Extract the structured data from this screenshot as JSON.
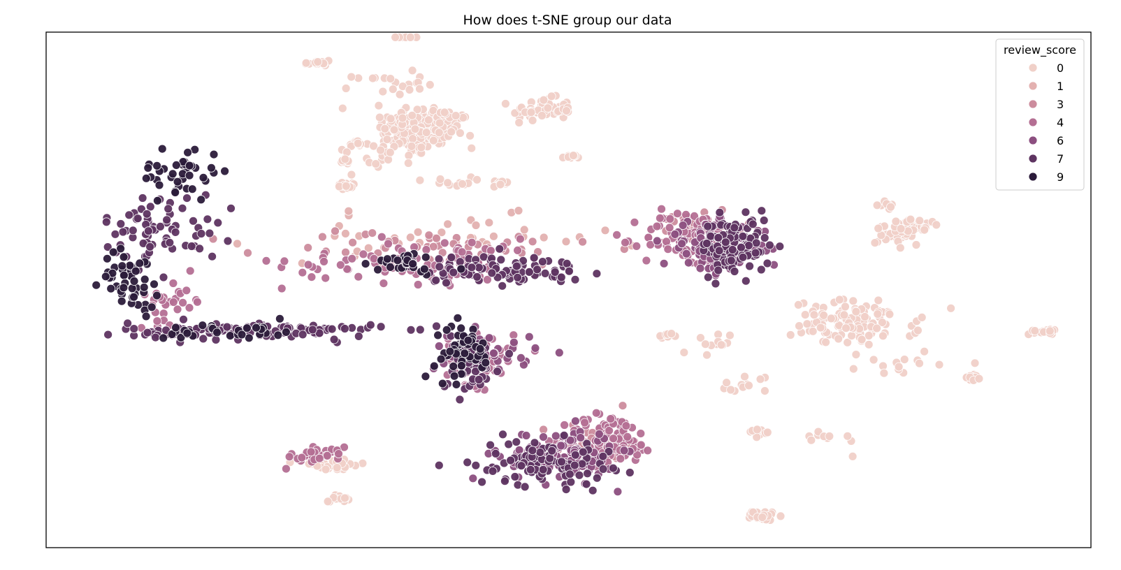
{
  "chart_data": {
    "type": "scatter",
    "title": "How does t-SNE group our data",
    "xlabel": "",
    "ylabel": "",
    "xticks": [],
    "yticks": [],
    "grid": false,
    "xlim": [
      0,
      100
    ],
    "ylim": [
      0,
      100
    ],
    "legend": {
      "title": "review_score",
      "placement": "top-right",
      "entries": [
        {
          "label": "0",
          "color": "#f0d0c8"
        },
        {
          "label": "1",
          "color": "#e3b1b0"
        },
        {
          "label": "3",
          "color": "#cc8c9d"
        },
        {
          "label": "4",
          "color": "#b46f93"
        },
        {
          "label": "6",
          "color": "#8c4f80"
        },
        {
          "label": "7",
          "color": "#5e3461"
        },
        {
          "label": "9",
          "color": "#2b1b3a"
        }
      ]
    },
    "clusters": [
      {
        "score": "0",
        "cx": 35.9,
        "cy": 81.2,
        "sx": 3.8,
        "sy": 4.6,
        "n": 180,
        "rot": -0.35
      },
      {
        "score": "0",
        "cx": 47.5,
        "cy": 85.0,
        "sx": 2.6,
        "sy": 2.0,
        "n": 60
      },
      {
        "score": "0",
        "cx": 32.8,
        "cy": 90.0,
        "sx": 3.0,
        "sy": 2.0,
        "n": 20
      },
      {
        "score": "0",
        "cx": 26.0,
        "cy": 94.0,
        "sx": 1.2,
        "sy": 0.8,
        "n": 16
      },
      {
        "score": "0",
        "cx": 34.8,
        "cy": 100.5,
        "sx": 1.0,
        "sy": 0.5,
        "n": 14
      },
      {
        "score": "0",
        "cx": 29.7,
        "cy": 78.3,
        "sx": 0.9,
        "sy": 0.5,
        "n": 14
      },
      {
        "score": "0",
        "cx": 28.8,
        "cy": 70.3,
        "sx": 1.0,
        "sy": 0.6,
        "n": 16
      },
      {
        "score": "0",
        "cx": 28.6,
        "cy": 75.0,
        "sx": 0.6,
        "sy": 2.2,
        "n": 10
      },
      {
        "score": "0",
        "cx": 33.0,
        "cy": 76.0,
        "sx": 2.0,
        "sy": 2.0,
        "n": 14
      },
      {
        "score": "0",
        "cx": 38.0,
        "cy": 71.0,
        "sx": 2.5,
        "sy": 0.8,
        "n": 12
      },
      {
        "score": "0",
        "cx": 43.6,
        "cy": 70.6,
        "sx": 0.8,
        "sy": 0.6,
        "n": 12
      },
      {
        "score": "0",
        "cx": 50.2,
        "cy": 75.8,
        "sx": 0.7,
        "sy": 0.3,
        "n": 10
      },
      {
        "score": "0",
        "cx": 80.3,
        "cy": 66.5,
        "sx": 0.8,
        "sy": 0.5,
        "n": 12
      },
      {
        "score": "0",
        "cx": 82.0,
        "cy": 61.5,
        "sx": 1.7,
        "sy": 2.5,
        "n": 60,
        "rot": -0.6
      },
      {
        "score": "0",
        "cx": 77.5,
        "cy": 43.5,
        "sx": 5.5,
        "sy": 4.0,
        "n": 110
      },
      {
        "score": "0",
        "cx": 95.4,
        "cy": 42.0,
        "sx": 1.2,
        "sy": 0.6,
        "n": 18
      },
      {
        "score": "0",
        "cx": 88.7,
        "cy": 33.0,
        "sx": 0.7,
        "sy": 0.5,
        "n": 12
      },
      {
        "score": "0",
        "cx": 82.3,
        "cy": 36.0,
        "sx": 4.0,
        "sy": 2.5,
        "n": 14
      },
      {
        "score": "0",
        "cx": 66.8,
        "cy": 31.5,
        "sx": 2.5,
        "sy": 2.0,
        "n": 12
      },
      {
        "score": "0",
        "cx": 68.2,
        "cy": 22.5,
        "sx": 0.7,
        "sy": 0.5,
        "n": 14
      },
      {
        "score": "0",
        "cx": 68.7,
        "cy": 6.2,
        "sx": 1.0,
        "sy": 0.8,
        "n": 30
      },
      {
        "score": "0",
        "cx": 59.4,
        "cy": 41.0,
        "sx": 0.6,
        "sy": 0.6,
        "n": 10
      },
      {
        "score": "0",
        "cx": 63.2,
        "cy": 39.0,
        "sx": 2.0,
        "sy": 2.5,
        "n": 12
      },
      {
        "score": "0",
        "cx": 74.2,
        "cy": 21.0,
        "sx": 4.0,
        "sy": 2.0,
        "n": 10
      },
      {
        "score": "0",
        "cx": 27.3,
        "cy": 16.0,
        "sx": 3.0,
        "sy": 0.9,
        "n": 40
      },
      {
        "score": "0",
        "cx": 28.0,
        "cy": 9.6,
        "sx": 0.9,
        "sy": 0.6,
        "n": 24
      },
      {
        "score": "1",
        "cx": 37.5,
        "cy": 60.0,
        "sx": 15.0,
        "sy": 4.0,
        "n": 40
      },
      {
        "score": "3",
        "cx": 37.0,
        "cy": 58.0,
        "sx": 15.0,
        "sy": 3.5,
        "n": 50
      },
      {
        "score": "3",
        "cx": 63.0,
        "cy": 61.5,
        "sx": 3.5,
        "sy": 4.0,
        "n": 40
      },
      {
        "score": "3",
        "cx": 52.0,
        "cy": 20.0,
        "sx": 3.5,
        "sy": 4.0,
        "n": 40
      },
      {
        "score": "4",
        "cx": 61.5,
        "cy": 60.0,
        "sx": 4.0,
        "sy": 5.0,
        "n": 90
      },
      {
        "score": "4",
        "cx": 54.0,
        "cy": 21.0,
        "sx": 4.0,
        "sy": 4.5,
        "n": 90
      },
      {
        "score": "4",
        "cx": 36.0,
        "cy": 55.5,
        "sx": 12.0,
        "sy": 4.0,
        "n": 90
      },
      {
        "score": "4",
        "cx": 41.5,
        "cy": 37.0,
        "sx": 3.0,
        "sy": 5.0,
        "n": 50
      },
      {
        "score": "4",
        "cx": 26.5,
        "cy": 18.3,
        "sx": 2.5,
        "sy": 1.2,
        "n": 40,
        "rot": 0.4
      },
      {
        "score": "4",
        "cx": 12.0,
        "cy": 48.0,
        "sx": 3.0,
        "sy": 4.0,
        "n": 30
      },
      {
        "score": "6",
        "cx": 64.0,
        "cy": 58.0,
        "sx": 4.5,
        "sy": 4.5,
        "n": 80
      },
      {
        "score": "6",
        "cx": 49.0,
        "cy": 18.0,
        "sx": 5.0,
        "sy": 4.5,
        "n": 110
      },
      {
        "score": "6",
        "cx": 42.0,
        "cy": 38.0,
        "sx": 4.5,
        "sy": 4.0,
        "n": 40
      },
      {
        "score": "7",
        "cx": 66.0,
        "cy": 58.5,
        "sx": 3.0,
        "sy": 5.0,
        "n": 110
      },
      {
        "score": "7",
        "cx": 47.5,
        "cy": 16.5,
        "sx": 6.0,
        "sy": 4.0,
        "n": 100
      },
      {
        "score": "7",
        "cx": 43.0,
        "cy": 54.0,
        "sx": 8.0,
        "sy": 2.5,
        "n": 100
      },
      {
        "score": "7",
        "cx": 20.0,
        "cy": 42.0,
        "sx": 11.0,
        "sy": 1.5,
        "n": 110
      },
      {
        "score": "7",
        "cx": 11.0,
        "cy": 62.0,
        "sx": 5.0,
        "sy": 6.0,
        "n": 70
      },
      {
        "score": "7",
        "cx": 40.5,
        "cy": 36.0,
        "sx": 2.5,
        "sy": 5.0,
        "n": 60
      },
      {
        "score": "9",
        "cx": 40.0,
        "cy": 38.0,
        "sx": 2.5,
        "sy": 5.0,
        "n": 50
      },
      {
        "score": "9",
        "cx": 8.0,
        "cy": 52.0,
        "sx": 2.5,
        "sy": 5.0,
        "n": 50
      },
      {
        "score": "9",
        "cx": 13.0,
        "cy": 73.0,
        "sx": 3.5,
        "sy": 5.0,
        "n": 40
      },
      {
        "score": "9",
        "cx": 34.0,
        "cy": 55.0,
        "sx": 4.0,
        "sy": 2.0,
        "n": 30
      },
      {
        "score": "9",
        "cx": 18.0,
        "cy": 42.0,
        "sx": 6.0,
        "sy": 1.5,
        "n": 30
      }
    ]
  }
}
